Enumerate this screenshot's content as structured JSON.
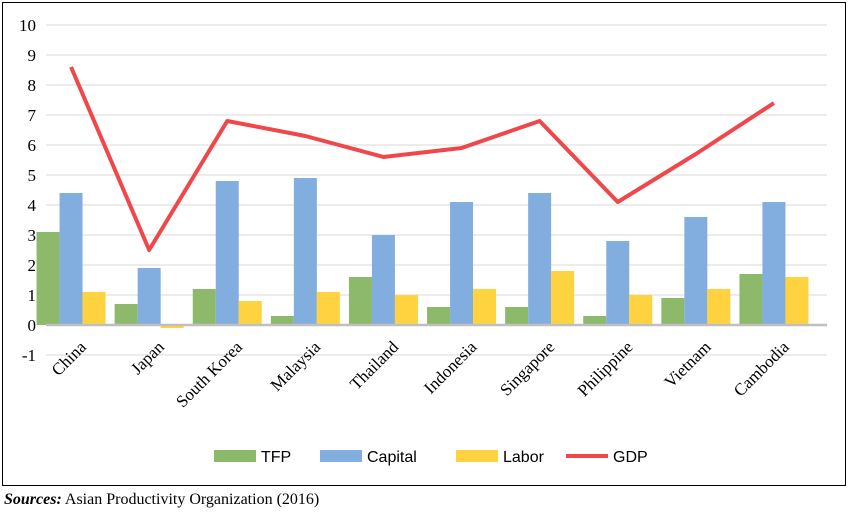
{
  "chart_data": {
    "type": "bar",
    "title": "",
    "xlabel": "",
    "ylabel": "",
    "ylim": [
      -1,
      10
    ],
    "yticks": [
      -1,
      0,
      1,
      2,
      3,
      4,
      5,
      6,
      7,
      8,
      9,
      10
    ],
    "grid": true,
    "legend": "bottom",
    "categories": [
      "China",
      "Japan",
      "South Korea",
      "Malaysia",
      "Thailand",
      "Indonesia",
      "Singapore",
      "Philippine",
      "Vietnam",
      "Cambodia"
    ],
    "series": [
      {
        "name": "TFP",
        "kind": "bar",
        "color": "#8DB96A",
        "values": [
          3.1,
          0.7,
          1.2,
          0.3,
          1.6,
          0.6,
          0.6,
          0.3,
          0.9,
          1.7
        ]
      },
      {
        "name": "Capital",
        "kind": "bar",
        "color": "#82AEDF",
        "values": [
          4.4,
          1.9,
          4.8,
          4.9,
          3.0,
          4.1,
          4.4,
          2.8,
          3.6,
          4.1
        ]
      },
      {
        "name": "Labor",
        "kind": "bar",
        "color": "#FFD23F",
        "values": [
          1.1,
          -0.1,
          0.8,
          1.1,
          1.0,
          1.2,
          1.8,
          1.0,
          1.2,
          1.6
        ]
      },
      {
        "name": "GDP",
        "kind": "line",
        "color": "#F0474A",
        "values": [
          8.6,
          2.5,
          6.8,
          6.3,
          5.6,
          5.9,
          6.8,
          4.1,
          5.7,
          7.4
        ]
      }
    ]
  },
  "source": {
    "label": "Sources:",
    "text": " Asian Productivity Organization (2016)"
  }
}
